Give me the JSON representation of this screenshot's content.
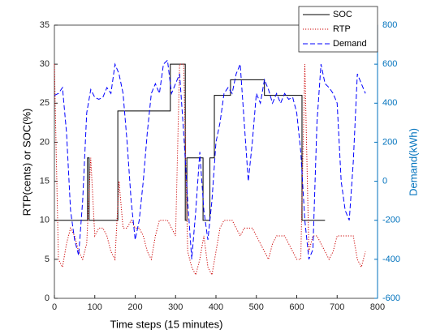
{
  "chart_data": {
    "type": "line",
    "xlabel": "Time steps (15 minutes)",
    "ylabel": "RTP(cents) or SOC(%)",
    "y2label": "Demand(kWh)",
    "xlim": [
      0,
      800
    ],
    "xticks": [
      0,
      100,
      200,
      300,
      400,
      500,
      600,
      700,
      800
    ],
    "ylim": [
      0,
      35
    ],
    "yticks": [
      0,
      5,
      10,
      15,
      20,
      25,
      30,
      35
    ],
    "y2lim": [
      -600,
      800
    ],
    "y2ticks": [
      -600,
      -400,
      -200,
      0,
      200,
      400,
      600,
      800
    ],
    "y2color": "#0072bd",
    "legend": "top-right",
    "series": [
      {
        "name": "SOC",
        "color": "#000000",
        "style": "solid",
        "x": [
          0,
          82,
          82,
          86,
          86,
          157,
          157,
          287,
          287,
          324,
          324,
          328,
          328,
          368,
          368,
          385,
          385,
          396,
          396,
          436,
          436,
          520,
          520,
          613,
          613,
          670
        ],
        "values": [
          10,
          10,
          18,
          18,
          10,
          10,
          24,
          24,
          30,
          30,
          10,
          10,
          18,
          18,
          10,
          10,
          18,
          18,
          26,
          26,
          28,
          28,
          26,
          26,
          10,
          10
        ]
      },
      {
        "name": "RTP",
        "color": "#cc0000",
        "style": "dotted",
        "x": [
          0,
          10,
          20,
          30,
          40,
          50,
          60,
          70,
          80,
          90,
          100,
          110,
          120,
          130,
          140,
          150,
          160,
          170,
          180,
          190,
          200,
          210,
          220,
          230,
          240,
          250,
          260,
          270,
          280,
          290,
          300,
          310,
          320,
          330,
          340,
          350,
          360,
          370,
          380,
          390,
          400,
          410,
          420,
          430,
          440,
          450,
          460,
          470,
          480,
          490,
          500,
          510,
          520,
          530,
          540,
          550,
          560,
          570,
          580,
          590,
          600,
          610,
          620,
          630,
          640,
          650,
          660,
          670,
          680,
          690,
          700,
          710,
          720,
          730,
          740,
          750,
          760,
          770
        ],
        "values": [
          30,
          5,
          4,
          7,
          9,
          8,
          6,
          5,
          7,
          18,
          8,
          9,
          9,
          8,
          6,
          5,
          15,
          9,
          9,
          10,
          9,
          9,
          8,
          6,
          5,
          8,
          10,
          10,
          10,
          9,
          8,
          30,
          30,
          6,
          4,
          3,
          5,
          8,
          4,
          3,
          6,
          9,
          10,
          10,
          10,
          9,
          8,
          9,
          9,
          9,
          8,
          7,
          6,
          5,
          7,
          8,
          8,
          8,
          7,
          6,
          5,
          5,
          30,
          6,
          8,
          8,
          7,
          6,
          5,
          6,
          8,
          8,
          8,
          8,
          8,
          5,
          4,
          6
        ]
      },
      {
        "name": "Demand",
        "color": "#0000ff",
        "style": "dashed",
        "axis": "y2",
        "x": [
          0,
          10,
          20,
          30,
          40,
          50,
          60,
          70,
          80,
          90,
          100,
          110,
          120,
          130,
          140,
          150,
          160,
          170,
          180,
          190,
          200,
          210,
          220,
          230,
          240,
          250,
          260,
          270,
          280,
          290,
          300,
          310,
          320,
          330,
          340,
          350,
          360,
          370,
          380,
          390,
          400,
          410,
          420,
          430,
          440,
          450,
          460,
          470,
          480,
          490,
          500,
          510,
          520,
          530,
          540,
          550,
          560,
          570,
          580,
          590,
          600,
          610,
          620,
          630,
          640,
          650,
          660,
          670,
          680,
          690,
          700,
          710,
          720,
          730,
          740,
          750,
          760,
          770
        ],
        "values": [
          440,
          450,
          480,
          250,
          -150,
          -300,
          -380,
          -100,
          350,
          470,
          430,
          420,
          430,
          480,
          450,
          600,
          550,
          450,
          200,
          -100,
          -300,
          -200,
          0,
          250,
          450,
          500,
          450,
          600,
          620,
          450,
          500,
          550,
          250,
          -100,
          -400,
          -150,
          150,
          -150,
          -300,
          -100,
          200,
          300,
          450,
          480,
          450,
          550,
          600,
          300,
          0,
          200,
          450,
          400,
          520,
          470,
          400,
          450,
          400,
          450,
          420,
          430,
          350,
          150,
          -200,
          -400,
          -350,
          300,
          600,
          500,
          480,
          450,
          400,
          0,
          -150,
          -200,
          100,
          550,
          500,
          450
        ]
      }
    ]
  }
}
